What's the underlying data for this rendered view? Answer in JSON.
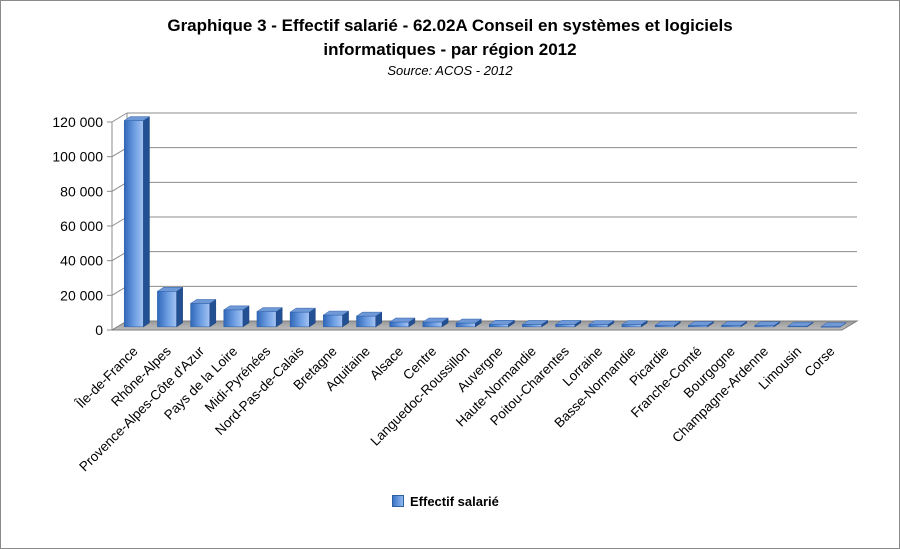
{
  "chart_data": {
    "type": "bar",
    "title_line1": "Graphique 3 - Effectif salarié - 62.02A Conseil en systèmes et logiciels",
    "title_line2": "informatiques - par région 2012",
    "subtitle": "Source: ACOS - 2012",
    "xlabel": "",
    "ylabel": "",
    "ylim": [
      0,
      120000
    ],
    "yticks": [
      "0",
      "20 000",
      "40 000",
      "60 000",
      "80 000",
      "100 000",
      "120 000"
    ],
    "ytick_values": [
      0,
      20000,
      40000,
      60000,
      80000,
      100000,
      120000
    ],
    "grid": true,
    "legend_position": "bottom",
    "categories": [
      "Île-de-France",
      "Rhône-Alpes",
      "Provence-Alpes-Côte d'Azur",
      "Pays de la Loire",
      "Midi-Pyrénées",
      "Nord-Pas-de-Calais",
      "Bretagne",
      "Aquitaine",
      "Alsace",
      "Centre",
      "Languedoc-Roussillon",
      "Auvergne",
      "Haute-Normandie",
      "Poitou-Charentes",
      "Lorraine",
      "Basse-Normandie",
      "Picardie",
      "Franche-Comté",
      "Bourgogne",
      "Champagne-Ardenne",
      "Limousin",
      "Corse"
    ],
    "series": [
      {
        "name": "Effectif salarié",
        "color": "#5b8fd8",
        "values": [
          119000,
          20500,
          13500,
          9800,
          8800,
          8500,
          6800,
          6200,
          2800,
          2800,
          2200,
          1500,
          1400,
          1400,
          1300,
          1300,
          900,
          800,
          800,
          700,
          400,
          100
        ]
      }
    ],
    "legend": [
      "Effectif salarié"
    ]
  }
}
